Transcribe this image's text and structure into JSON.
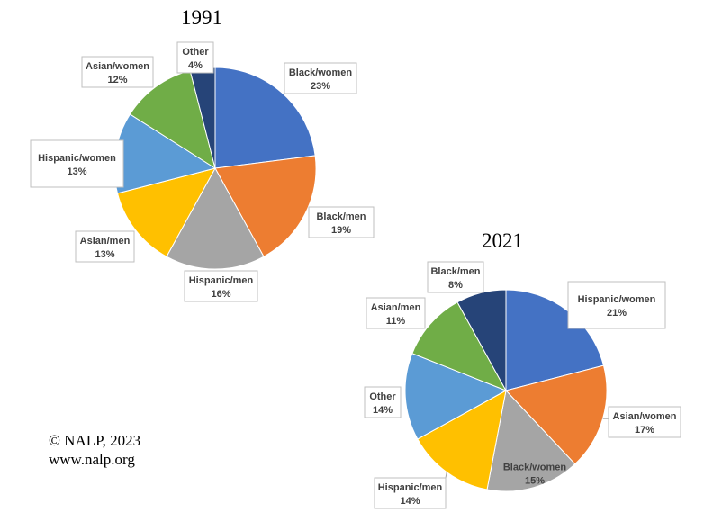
{
  "chart_data": [
    {
      "type": "pie",
      "title": "1991",
      "unit": "%",
      "slices": [
        {
          "label": "Black/women",
          "value": 23,
          "color": "#4472C4"
        },
        {
          "label": "Black/men",
          "value": 19,
          "color": "#ED7D31"
        },
        {
          "label": "Hispanic/men",
          "value": 16,
          "color": "#A5A5A5"
        },
        {
          "label": "Asian/men",
          "value": 13,
          "color": "#FFC000"
        },
        {
          "label": "Hispanic/women",
          "value": 13,
          "color": "#5B9BD5"
        },
        {
          "label": "Asian/women",
          "value": 12,
          "color": "#70AD47"
        },
        {
          "label": "Other",
          "value": 4,
          "color": "#264478"
        }
      ]
    },
    {
      "type": "pie",
      "title": "2021",
      "unit": "%",
      "slices": [
        {
          "label": "Hispanic/women",
          "value": 21,
          "color": "#4472C4"
        },
        {
          "label": "Asian/women",
          "value": 17,
          "color": "#ED7D31"
        },
        {
          "label": "Black/women",
          "value": 15,
          "color": "#A5A5A5"
        },
        {
          "label": "Hispanic/men",
          "value": 14,
          "color": "#FFC000"
        },
        {
          "label": "Other",
          "value": 14,
          "color": "#5B9BD5"
        },
        {
          "label": "Asian/men",
          "value": 11,
          "color": "#70AD47"
        },
        {
          "label": "Black/men",
          "value": 8,
          "color": "#264478"
        }
      ]
    }
  ],
  "credits": {
    "copyright": "© NALP, 2023",
    "website": "www.nalp.org"
  }
}
